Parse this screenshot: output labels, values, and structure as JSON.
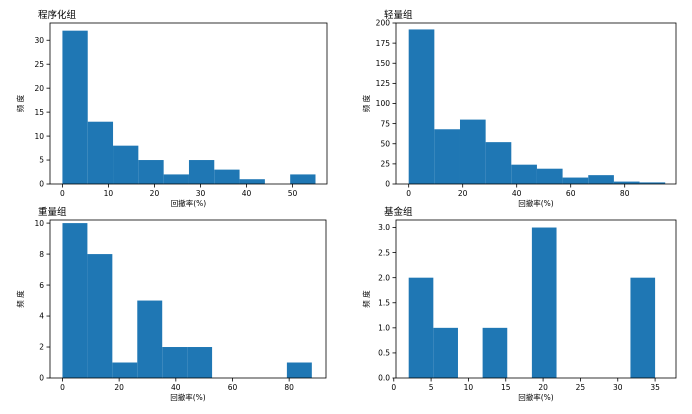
{
  "colors": {
    "bar": "#1f77b4",
    "axis": "#000000",
    "background": "#ffffff"
  },
  "chart_data": [
    {
      "type": "bar",
      "title": "程序化组",
      "xlabel": "回撤率(%)",
      "ylabel": "频 度",
      "xlim": [
        -2.7,
        57.5
      ],
      "ylim": [
        0,
        33.6
      ],
      "xticks": [
        0,
        10,
        20,
        30,
        40,
        50
      ],
      "yticks": [
        0,
        5,
        10,
        15,
        20,
        25,
        30
      ],
      "bin_edges": [
        0.0,
        5.5,
        11.0,
        16.5,
        22.0,
        27.5,
        33.0,
        38.5,
        44.0,
        49.5,
        55.0
      ],
      "values": [
        32,
        13,
        8,
        5,
        2,
        5,
        3,
        1,
        0,
        2
      ],
      "grid": false
    },
    {
      "type": "bar",
      "title": "轻量组",
      "xlabel": "回撤率(%)",
      "ylabel": "频 度",
      "xlim": [
        -4.7,
        99
      ],
      "ylim": [
        0,
        200
      ],
      "xticks": [
        0,
        20,
        40,
        60,
        80
      ],
      "yticks": [
        0,
        25,
        50,
        75,
        100,
        125,
        150,
        175,
        200
      ],
      "bin_edges": [
        0.0,
        9.5,
        19.0,
        28.5,
        38.0,
        47.5,
        57.0,
        66.5,
        76.0,
        85.5,
        95.0
      ],
      "values": [
        192,
        68,
        80,
        52,
        24,
        19,
        8,
        11,
        3,
        2
      ],
      "grid": false
    },
    {
      "type": "bar",
      "title": "重量组",
      "xlabel": "回撤率(%)",
      "ylabel": "频 度",
      "xlim": [
        -4.4,
        93
      ],
      "ylim": [
        0,
        10.2
      ],
      "xticks": [
        0,
        20,
        40,
        60,
        80
      ],
      "yticks": [
        0,
        2,
        4,
        6,
        8,
        10
      ],
      "bin_edges": [
        0.0,
        8.8,
        17.6,
        26.4,
        35.2,
        44.0,
        52.8,
        61.6,
        70.4,
        79.2,
        88.0
      ],
      "values": [
        10,
        8,
        1,
        5,
        2,
        2,
        0,
        0,
        0,
        1
      ],
      "grid": false
    },
    {
      "type": "bar",
      "title": "基金组",
      "xlabel": "回撤率(%)",
      "ylabel": "频 度",
      "xlim": [
        0.3,
        37.8
      ],
      "ylim": [
        0,
        3.15
      ],
      "xticks": [
        0,
        5,
        10,
        15,
        20,
        25,
        30,
        35
      ],
      "yticks": [
        0.0,
        0.5,
        1.0,
        1.5,
        2.0,
        2.5,
        3.0
      ],
      "ytick_decimals": 1,
      "bin_edges": [
        2.0,
        5.3,
        8.6,
        11.9,
        15.2,
        18.5,
        21.8,
        25.1,
        28.4,
        31.7,
        35.0
      ],
      "values": [
        2,
        1,
        0,
        1,
        0,
        3,
        0,
        0,
        0,
        2
      ],
      "grid": false
    }
  ]
}
